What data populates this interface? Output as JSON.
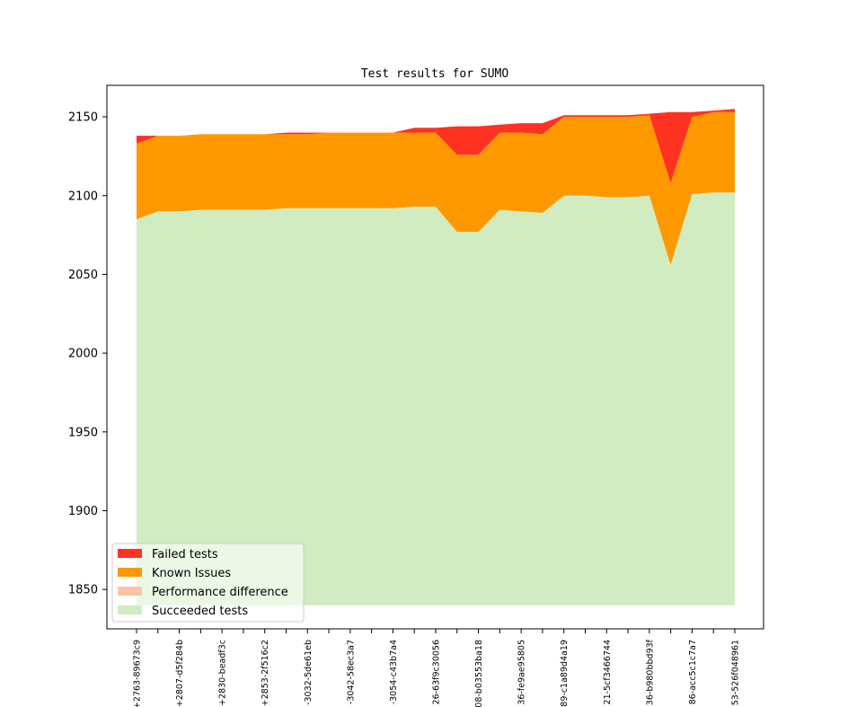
{
  "chart_data": {
    "type": "area",
    "title": "Test results for SUMO",
    "xlabel": "",
    "ylabel": "",
    "ylim": [
      1825,
      2170
    ],
    "yticks": [
      1850,
      1900,
      1950,
      2000,
      2050,
      2100,
      2150
    ],
    "grid": false,
    "legend_position": "lower-left",
    "x_labels": [
      "+2763-89673c9",
      "",
      "+2807-d5f284b",
      "",
      "+2830-beadf3c",
      "",
      "+2853-2f516c2",
      "",
      "-3032-5de61eb",
      "",
      "-3042-58ec3a7",
      "",
      "-3054-c43b7a4",
      "",
      "26-63f9c30056",
      "",
      "08-b03553ba18",
      "",
      "36-fe9ae95805",
      "",
      "89-c1a89d4a19",
      "",
      "21-5cf3466744",
      "",
      "36-b980bbd93f",
      "",
      "86-acc5c1c7a7",
      "",
      "53-526f048961"
    ],
    "series": [
      {
        "name": "Succeeded tests",
        "color": "#d0ecc0",
        "values": [
          2085,
          2090,
          2090,
          2091,
          2091,
          2091,
          2091,
          2092,
          2092,
          2092,
          2092,
          2092,
          2092,
          2093,
          2093,
          2077,
          2077,
          2091,
          2090,
          2089,
          2100,
          2100,
          2099,
          2099,
          2100,
          2056,
          2101,
          2102,
          2102
        ]
      },
      {
        "name": "Performance difference",
        "color": "#fbc3a8",
        "values": [
          0,
          0,
          0,
          0,
          0,
          0,
          0,
          0,
          0,
          0,
          0,
          0,
          0,
          0,
          0,
          0,
          0,
          0,
          0,
          0,
          0,
          0,
          0,
          0,
          0,
          0,
          0,
          0,
          0
        ]
      },
      {
        "name": "Known Issues",
        "color": "#fd9800",
        "values": [
          48,
          48,
          48,
          48,
          48,
          48,
          48,
          47,
          47,
          48,
          48,
          48,
          48,
          47,
          47,
          49,
          49,
          49,
          50,
          50,
          50,
          50,
          51,
          51,
          51,
          52,
          49,
          51,
          51
        ]
      },
      {
        "name": "Failed tests",
        "color": "#fd3220",
        "values": [
          5,
          0,
          0,
          0,
          0,
          0,
          0,
          1,
          1,
          0,
          0,
          0,
          0,
          3,
          3,
          18,
          18,
          5,
          6,
          7,
          1,
          1,
          1,
          1,
          1,
          45,
          3,
          1,
          2
        ]
      }
    ],
    "legend_order": [
      "Failed tests",
      "Known Issues",
      "Performance difference",
      "Succeeded tests"
    ]
  }
}
